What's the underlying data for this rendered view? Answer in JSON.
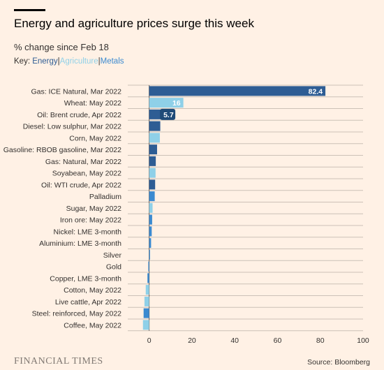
{
  "header": {
    "title": "Energy and agriculture prices surge this week",
    "subtitle": "% change since Feb 18"
  },
  "key": {
    "label": "Key: ",
    "sep": "|",
    "items": [
      {
        "label": "Energy",
        "color": "#2e5d94"
      },
      {
        "label": "Agriculture",
        "color": "#8fd0e8"
      },
      {
        "label": "Metals",
        "color": "#3b8ad0"
      }
    ]
  },
  "footer": {
    "logo": "FINANCIAL TIMES",
    "source": "Source: Bloomberg"
  },
  "chart_data": {
    "type": "bar",
    "orientation": "horizontal",
    "categories": [
      "Gas: ICE Natural, Mar 2022",
      "Wheat: May 2022",
      "Oil: Brent crude, Apr 2022",
      "Diesel: Low sulphur, Mar 2022",
      "Corn, May 2022",
      "Gasoline: RBOB gasoline, Mar 2022",
      "Gas: Natural, Mar 2022",
      "Soyabean, May 2022",
      "Oil: WTI crude, Apr 2022",
      "Palladium",
      "Sugar, May 2022",
      "Iron ore: May 2022",
      "Nickel: LME 3-month",
      "Aluminium: LME 3-month",
      "Silver",
      "Gold",
      "Copper, LME 3-month",
      "Cotton, May 2022",
      "Live cattle, Apr 2022",
      "Steel: reinforced, May 2022",
      "Coffee, May 2022"
    ],
    "values": [
      82.4,
      16,
      5.7,
      5.2,
      5.0,
      3.7,
      3.1,
      3.0,
      2.8,
      2.6,
      1.6,
      1.4,
      1.2,
      0.9,
      0.4,
      -0.4,
      -0.8,
      -1.6,
      -2.2,
      -2.6,
      -2.9
    ],
    "groups": [
      "Energy",
      "Agriculture",
      "Energy",
      "Energy",
      "Agriculture",
      "Energy",
      "Energy",
      "Agriculture",
      "Energy",
      "Metals",
      "Agriculture",
      "Metals",
      "Metals",
      "Metals",
      "Metals",
      "Metals",
      "Metals",
      "Agriculture",
      "Agriculture",
      "Metals",
      "Agriculture"
    ],
    "data_labels": [
      "82.4",
      "16",
      "5.7",
      "",
      "",
      "",
      "",
      "",
      "",
      "",
      "",
      "",
      "",
      "",
      "",
      "",
      "",
      "",
      "",
      "",
      ""
    ],
    "xlim": [
      -10,
      100
    ],
    "xticks": [
      0,
      20,
      40,
      60,
      80,
      100
    ],
    "grid": true
  }
}
